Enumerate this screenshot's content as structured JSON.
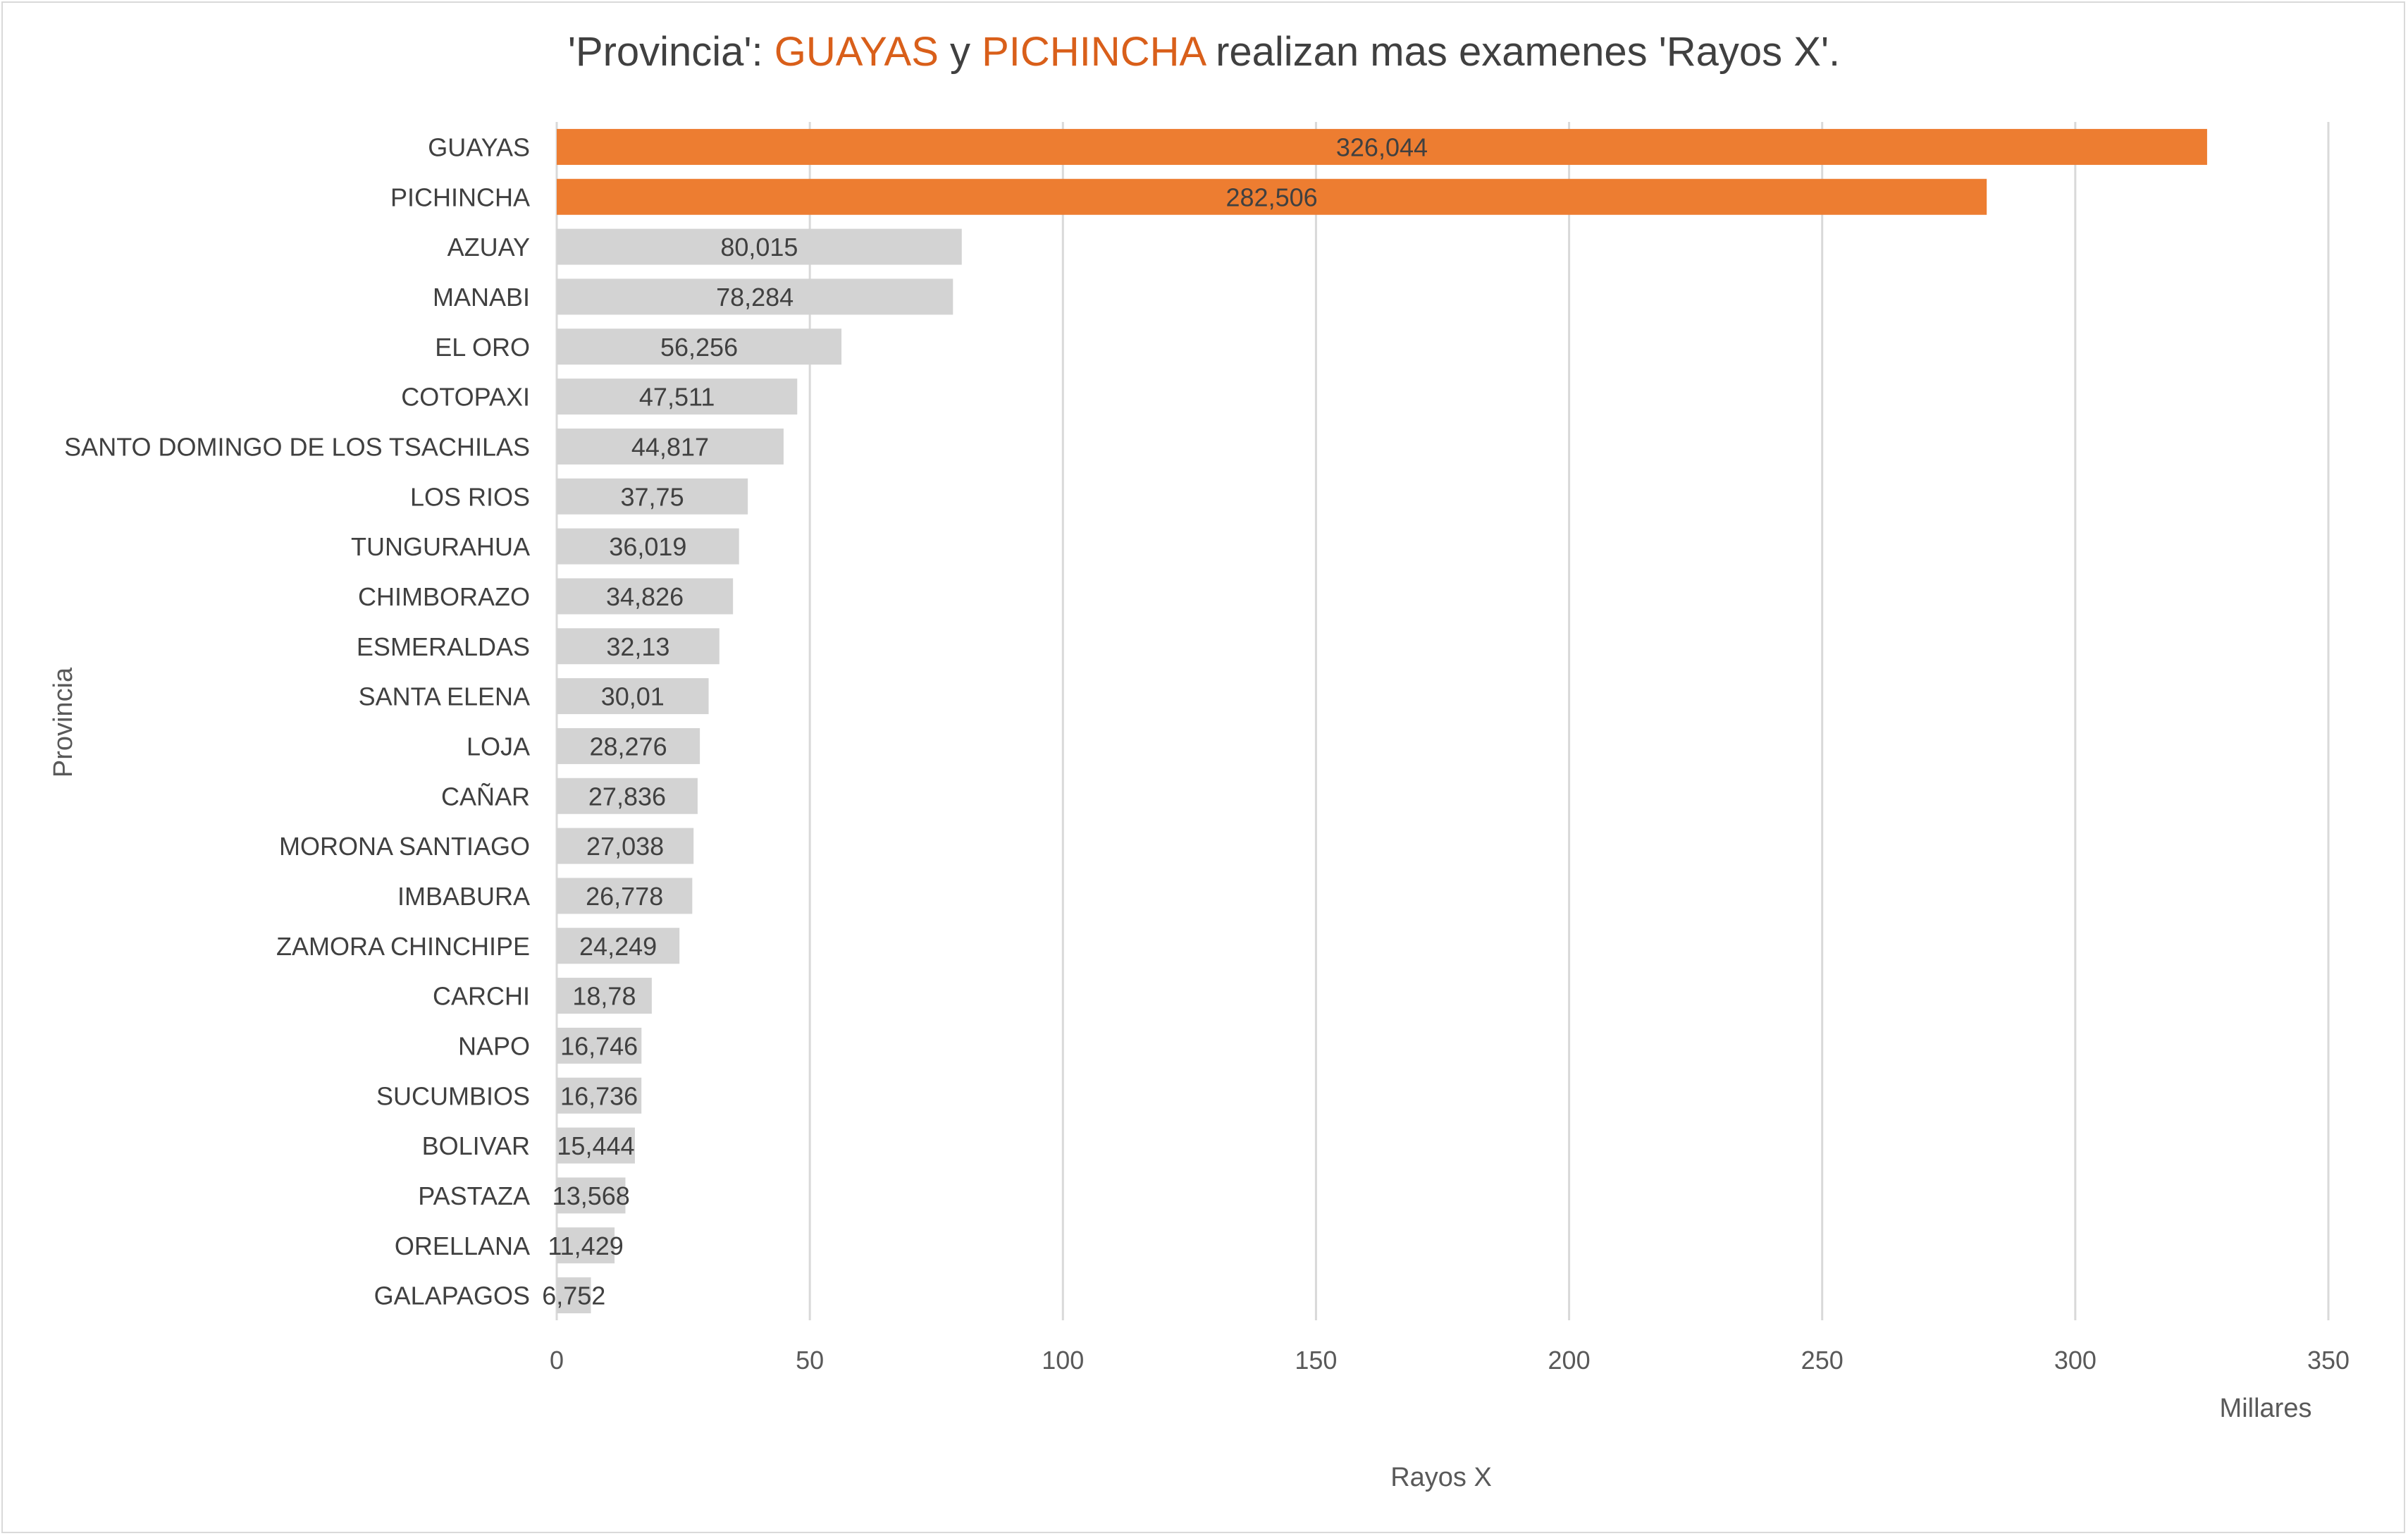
{
  "title": {
    "prefix": "'Provincia': ",
    "hl1": "GUAYAS",
    "mid": " y ",
    "hl2": "PICHINCHA",
    "suffix": " realizan mas examenes 'Rayos X'."
  },
  "colors": {
    "highlight": "#ED7D31",
    "default": "#D3D3D3",
    "title_highlight": "#D95F1A",
    "grid": "#D9D9D9"
  },
  "chart_data": {
    "type": "bar",
    "orientation": "horizontal",
    "title": "'Provincia': GUAYAS y PICHINCHA realizan mas examenes 'Rayos X'.",
    "xlabel": "Rayos X",
    "ylabel": "Provincia",
    "x_unit_label": "Millares",
    "xlim": [
      0,
      350
    ],
    "xticks": [
      0,
      50,
      100,
      150,
      200,
      250,
      300,
      350
    ],
    "grid": true,
    "highlighted": [
      "GUAYAS",
      "PICHINCHA"
    ],
    "categories": [
      "GUAYAS",
      "PICHINCHA",
      "AZUAY",
      "MANABI",
      "EL ORO",
      "COTOPAXI",
      "SANTO DOMINGO DE LOS TSACHILAS",
      "LOS RIOS",
      "TUNGURAHUA",
      "CHIMBORAZO",
      "ESMERALDAS",
      "SANTA ELENA",
      "LOJA",
      "CAÑAR",
      "MORONA SANTIAGO",
      "IMBABURA",
      "ZAMORA CHINCHIPE",
      "CARCHI",
      "NAPO",
      "SUCUMBIOS",
      "BOLIVAR",
      "PASTAZA",
      "ORELLANA",
      "GALAPAGOS"
    ],
    "values": [
      326.044,
      282.506,
      80.015,
      78.284,
      56.256,
      47.511,
      44.817,
      37.75,
      36.019,
      34.826,
      32.13,
      30.01,
      28.276,
      27.836,
      27.038,
      26.778,
      24.249,
      18.78,
      16.746,
      16.736,
      15.444,
      13.568,
      11.429,
      6.752
    ],
    "value_labels": [
      "326,044",
      "282,506",
      "80,015",
      "78,284",
      "56,256",
      "47,511",
      "44,817",
      "37,75",
      "36,019",
      "34,826",
      "32,13",
      "30,01",
      "28,276",
      "27,836",
      "27,038",
      "26,778",
      "24,249",
      "18,78",
      "16,746",
      "16,736",
      "15,444",
      "13,568",
      "11,429",
      "6,752"
    ]
  }
}
